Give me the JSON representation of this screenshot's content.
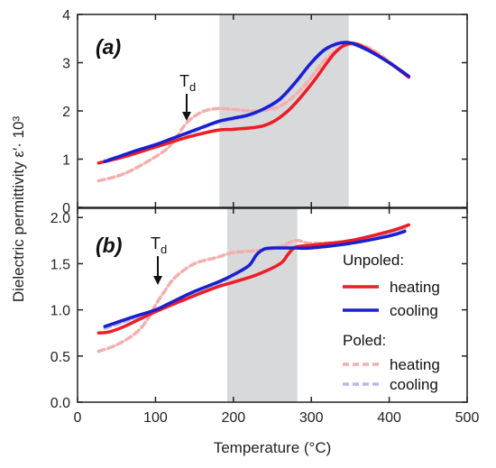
{
  "chart_data": {
    "type": "line",
    "xlabel": "Temperature (°C)",
    "ylabel": "Dielectric permittivity ε′· 10³",
    "x_ticks": [
      "0",
      "100",
      "200",
      "300",
      "400",
      "500"
    ],
    "xlim": [
      0,
      500
    ],
    "annotation_label": "T",
    "annotation_sub": "d",
    "legend": {
      "group_unpoled": "Unpoled:",
      "group_poled": "Poled:",
      "entries": [
        "heating",
        "cooling",
        "heating",
        "cooling"
      ]
    },
    "colors": {
      "unpoled_heating": "#ee1c25",
      "unpoled_cooling": "#1a1fcf",
      "poled_heating": "#f4aeae",
      "poled_cooling": "#b4b8ea",
      "shade": "#d8d9db"
    },
    "panels": [
      {
        "label": "(a)",
        "ylim": [
          0,
          4
        ],
        "y_ticks": [
          "0",
          "1",
          "2",
          "3",
          "4"
        ],
        "shaded_range": [
          182,
          348
        ],
        "annotation_x": 140,
        "series": [
          {
            "key": "unpoled_heating",
            "style": "solid",
            "x": [
              27,
              60,
              100,
              140,
              180,
              200,
              240,
              270,
              300,
              330,
              350,
              370,
              400,
              425
            ],
            "y": [
              0.92,
              1.05,
              1.25,
              1.45,
              1.6,
              1.62,
              1.7,
              2.0,
              2.55,
              3.2,
              3.4,
              3.3,
              3.0,
              2.7
            ]
          },
          {
            "key": "unpoled_cooling",
            "style": "solid",
            "x": [
              425,
              400,
              370,
              345,
              320,
              300,
              280,
              260,
              240,
              220,
              200,
              180,
              150,
              120,
              100,
              70,
              35
            ],
            "y": [
              2.72,
              3.0,
              3.28,
              3.42,
              3.3,
              3.0,
              2.6,
              2.25,
              2.05,
              1.92,
              1.85,
              1.78,
              1.6,
              1.42,
              1.3,
              1.15,
              0.95
            ]
          },
          {
            "key": "poled_heating",
            "style": "dashed",
            "x": [
              27,
              60,
              100,
              120,
              140,
              160,
              180,
              200,
              230,
              260,
              290,
              320,
              350,
              380,
              425
            ],
            "y": [
              0.55,
              0.7,
              1.05,
              1.3,
              1.75,
              1.98,
              2.05,
              2.03,
              2.0,
              2.1,
              2.5,
              3.1,
              3.38,
              3.25,
              2.7
            ]
          },
          {
            "key": "poled_cooling",
            "style": "dashed",
            "x": [
              425,
              400,
              370,
              345,
              320,
              300,
              280,
              260,
              240,
              220,
              200,
              180,
              150,
              120,
              100,
              70,
              35
            ],
            "y": [
              2.7,
              3.0,
              3.27,
              3.4,
              3.28,
              2.98,
              2.58,
              2.23,
              2.03,
              1.9,
              1.83,
              1.76,
              1.58,
              1.4,
              1.28,
              1.13,
              0.97
            ]
          }
        ]
      },
      {
        "label": "(b)",
        "ylim": [
          0,
          2.1
        ],
        "y_ticks": [
          "0.0",
          "0.5",
          "1.0",
          "1.5",
          "2.0"
        ],
        "shaded_range": [
          192,
          282
        ],
        "annotation_x": 103,
        "series": [
          {
            "key": "unpoled_heating",
            "style": "solid",
            "x": [
              27,
              40,
              60,
              100,
              140,
              180,
              200,
              230,
              260,
              270,
              280,
              300,
              350,
              400,
              425
            ],
            "y": [
              0.75,
              0.76,
              0.82,
              0.98,
              1.12,
              1.25,
              1.3,
              1.38,
              1.5,
              1.6,
              1.68,
              1.7,
              1.75,
              1.85,
              1.92
            ]
          },
          {
            "key": "unpoled_cooling",
            "style": "solid",
            "x": [
              420,
              400,
              350,
              300,
              280,
              260,
              250,
              240,
              230,
              220,
              200,
              180,
              150,
              120,
              100,
              70,
              35
            ],
            "y": [
              1.85,
              1.8,
              1.72,
              1.67,
              1.67,
              1.67,
              1.67,
              1.66,
              1.6,
              1.48,
              1.38,
              1.3,
              1.2,
              1.08,
              1.0,
              0.92,
              0.82
            ]
          },
          {
            "key": "poled_heating",
            "style": "dashed",
            "x": [
              27,
              50,
              75,
              90,
              100,
              110,
              125,
              150,
              180,
              200,
              250,
              280,
              300,
              350,
              400,
              425
            ],
            "y": [
              0.55,
              0.62,
              0.75,
              0.9,
              1.05,
              1.18,
              1.35,
              1.5,
              1.57,
              1.62,
              1.66,
              1.75,
              1.72,
              1.75,
              1.85,
              1.92
            ]
          },
          {
            "key": "poled_cooling",
            "style": "dashed",
            "x": [
              420,
              400,
              350,
              300,
              280,
              260,
              250,
              240,
              230,
              220,
              200,
              180,
              150,
              120,
              100,
              70,
              35
            ],
            "y": [
              1.88,
              1.82,
              1.73,
              1.68,
              1.68,
              1.68,
              1.67,
              1.66,
              1.6,
              1.48,
              1.37,
              1.28,
              1.18,
              1.06,
              0.98,
              0.9,
              0.8
            ]
          }
        ]
      }
    ]
  }
}
